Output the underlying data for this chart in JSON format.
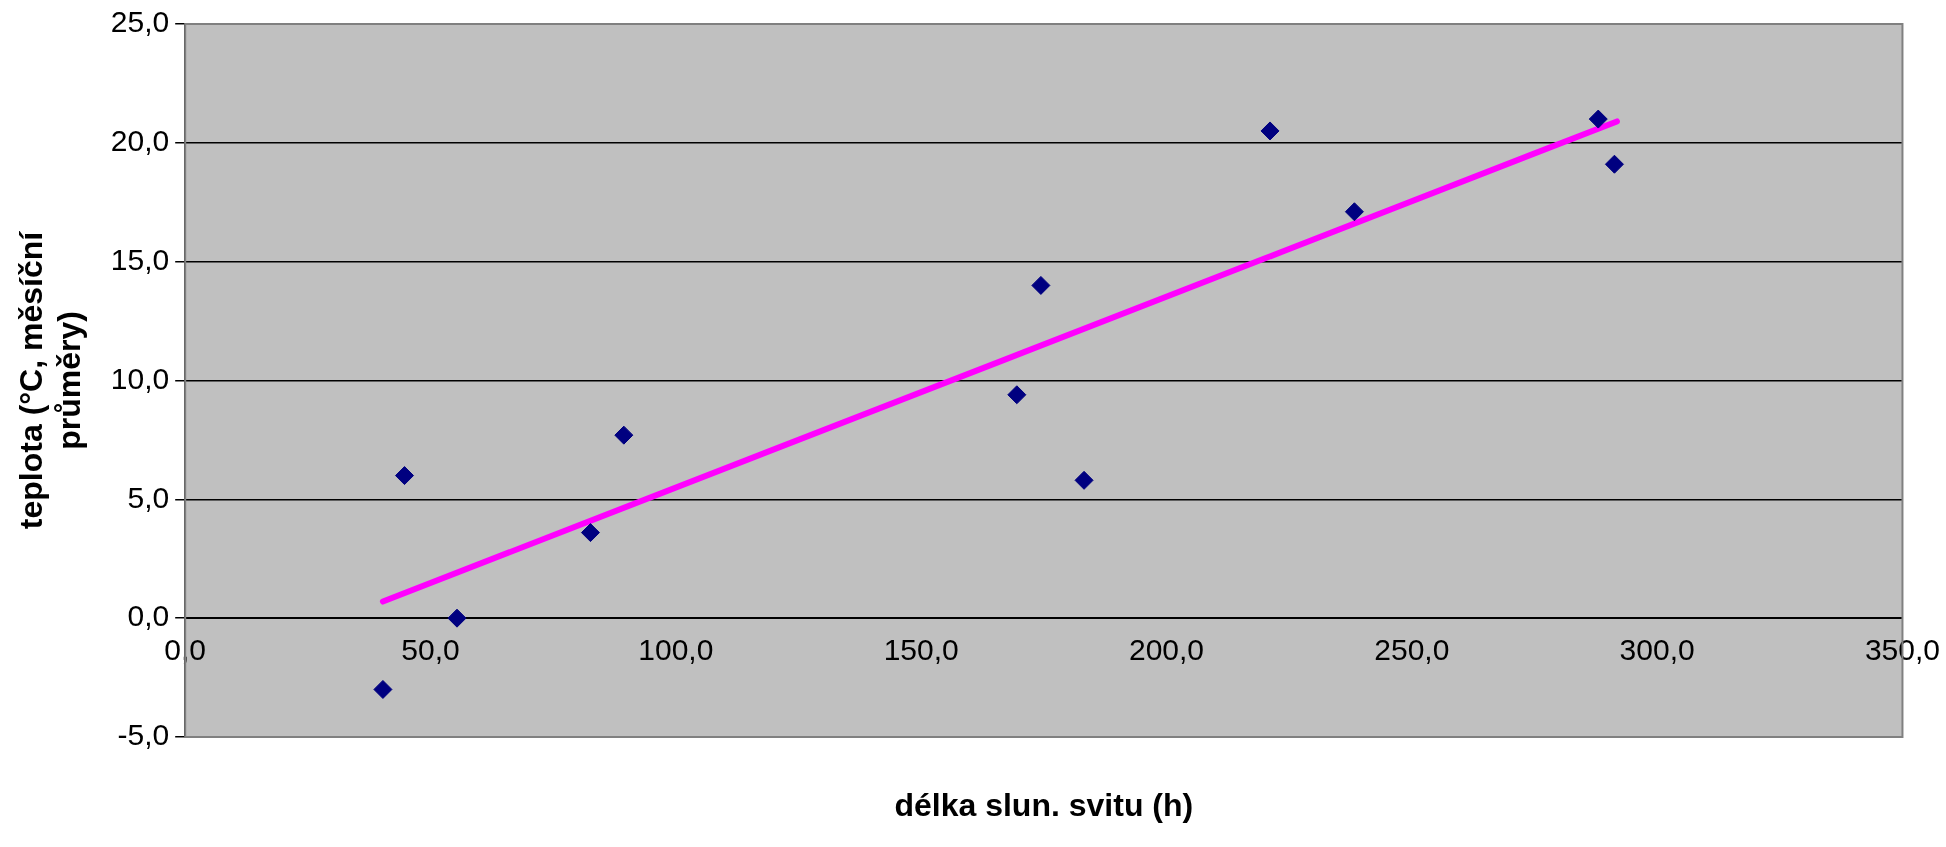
{
  "chart_data": {
    "type": "scatter",
    "xlabel": "délka slun. svitu (h)",
    "ylabel": "teplota (°C, měsíční průměry)",
    "xlim": [
      0,
      350
    ],
    "ylim": [
      -5,
      25
    ],
    "xticks": [
      {
        "value": 0,
        "label": "0,0"
      },
      {
        "value": 50,
        "label": "50,0"
      },
      {
        "value": 100,
        "label": "100,0"
      },
      {
        "value": 150,
        "label": "150,0"
      },
      {
        "value": 200,
        "label": "200,0"
      },
      {
        "value": 250,
        "label": "250,0"
      },
      {
        "value": 300,
        "label": "300,0"
      },
      {
        "value": 350,
        "label": "350,0"
      }
    ],
    "yticks": [
      {
        "value": -5,
        "label": "-5,0"
      },
      {
        "value": 0,
        "label": "0,0"
      },
      {
        "value": 5,
        "label": "5,0"
      },
      {
        "value": 10,
        "label": "10,0"
      },
      {
        "value": 15,
        "label": "15,0"
      },
      {
        "value": 20,
        "label": "20,0"
      },
      {
        "value": 25,
        "label": "25,0"
      }
    ],
    "grid": "y",
    "legend": false,
    "marker": "diamond",
    "series": [
      {
        "color": "#000080",
        "x": [
          40.3,
          44.7,
          55.4,
          82.6,
          89.4,
          169.5,
          174.4,
          183.2,
          221.1,
          238.3,
          288.0,
          291.3
        ],
        "values": [
          -3.0,
          6.0,
          0.0,
          3.6,
          7.7,
          9.4,
          14.0,
          5.8,
          20.5,
          17.1,
          21.0,
          19.1
        ]
      },
      {
        "type": "line",
        "color": "#ff00ff",
        "x": [
          40.3,
          291.8
        ],
        "values": [
          0.7,
          20.9
        ],
        "marker": "none"
      }
    ]
  }
}
